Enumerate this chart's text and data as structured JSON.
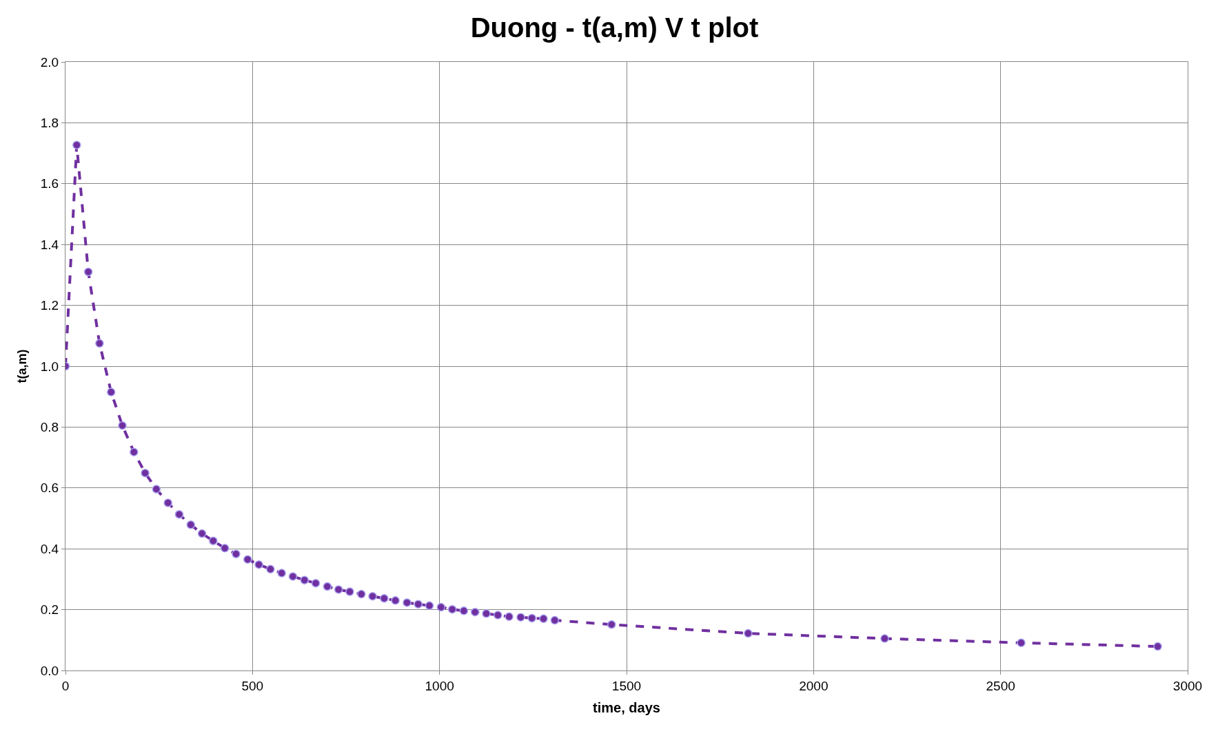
{
  "chart_data": {
    "type": "line",
    "title": "Duong - t(a,m) V t plot",
    "xlabel": "time, days",
    "ylabel": "t(a,m)",
    "x": [
      0,
      30,
      61,
      91,
      122,
      152,
      183,
      213,
      243,
      274,
      304,
      335,
      365,
      395,
      426,
      456,
      487,
      517,
      548,
      578,
      608,
      639,
      669,
      700,
      730,
      760,
      791,
      821,
      852,
      882,
      913,
      943,
      973,
      1004,
      1034,
      1065,
      1095,
      1125,
      1156,
      1186,
      1217,
      1247,
      1278,
      1308,
      1460,
      1825,
      2190,
      2555,
      2920
    ],
    "series": [
      {
        "color": "#7030a0",
        "values": [
          1.0,
          1.727,
          1.31,
          1.075,
          0.915,
          0.805,
          0.718,
          0.649,
          0.596,
          0.551,
          0.513,
          0.479,
          0.45,
          0.426,
          0.402,
          0.383,
          0.365,
          0.348,
          0.333,
          0.32,
          0.309,
          0.297,
          0.287,
          0.276,
          0.266,
          0.259,
          0.251,
          0.244,
          0.237,
          0.23,
          0.223,
          0.218,
          0.213,
          0.208,
          0.201,
          0.196,
          0.192,
          0.187,
          0.182,
          0.177,
          0.175,
          0.172,
          0.17,
          0.165,
          0.151,
          0.122,
          0.105,
          0.091,
          0.079
        ]
      }
    ],
    "xlim": [
      0,
      3000
    ],
    "xticks": [
      0,
      500,
      1000,
      1500,
      2000,
      2500,
      3000
    ],
    "ylim": [
      0,
      2.0
    ],
    "yticks": [
      {
        "value": 0,
        "label": "0.0"
      },
      {
        "value": 0.2,
        "label": "0.2"
      },
      {
        "value": 0.4,
        "label": "0.4"
      },
      {
        "value": 0.6,
        "label": "0.6"
      },
      {
        "value": 0.8,
        "label": "0.8"
      },
      {
        "value": 1.0,
        "label": "1.0"
      },
      {
        "value": 1.2,
        "label": "1.2"
      },
      {
        "value": 1.4,
        "label": "1.4"
      },
      {
        "value": 1.6,
        "label": "1.6"
      },
      {
        "value": 1.8,
        "label": "1.8"
      },
      {
        "value": 2.0,
        "label": "2.0"
      }
    ],
    "grid": true,
    "marker": "circle",
    "line_style": "dashed"
  }
}
